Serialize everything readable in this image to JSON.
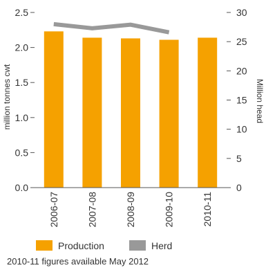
{
  "chart_data": {
    "type": "bar",
    "categories": [
      "2006-07",
      "2007-08",
      "2008-09",
      "2009-10",
      "2010-11"
    ],
    "series": [
      {
        "name": "Production",
        "type": "bar",
        "axis": "left",
        "values": [
          2.23,
          2.14,
          2.13,
          2.11,
          2.14
        ],
        "color": "#f5a100"
      },
      {
        "name": "Herd",
        "type": "line",
        "axis": "right",
        "values": [
          28.0,
          27.3,
          27.9,
          26.6,
          null
        ],
        "color": "#999999"
      }
    ],
    "y_left": {
      "label": "million tonnes cwt",
      "range": [
        0,
        2.5
      ],
      "ticks": [
        "0.0",
        "0.5",
        "1.0",
        "1.5",
        "2.0",
        "2.5"
      ]
    },
    "y_right": {
      "label": "Million head",
      "range": [
        0,
        30
      ],
      "ticks": [
        "0",
        "5",
        "10",
        "15",
        "20",
        "25",
        "30"
      ]
    },
    "grid": false,
    "legend_position": "bottom-left"
  },
  "note": "2010-11 figures available May 2012"
}
